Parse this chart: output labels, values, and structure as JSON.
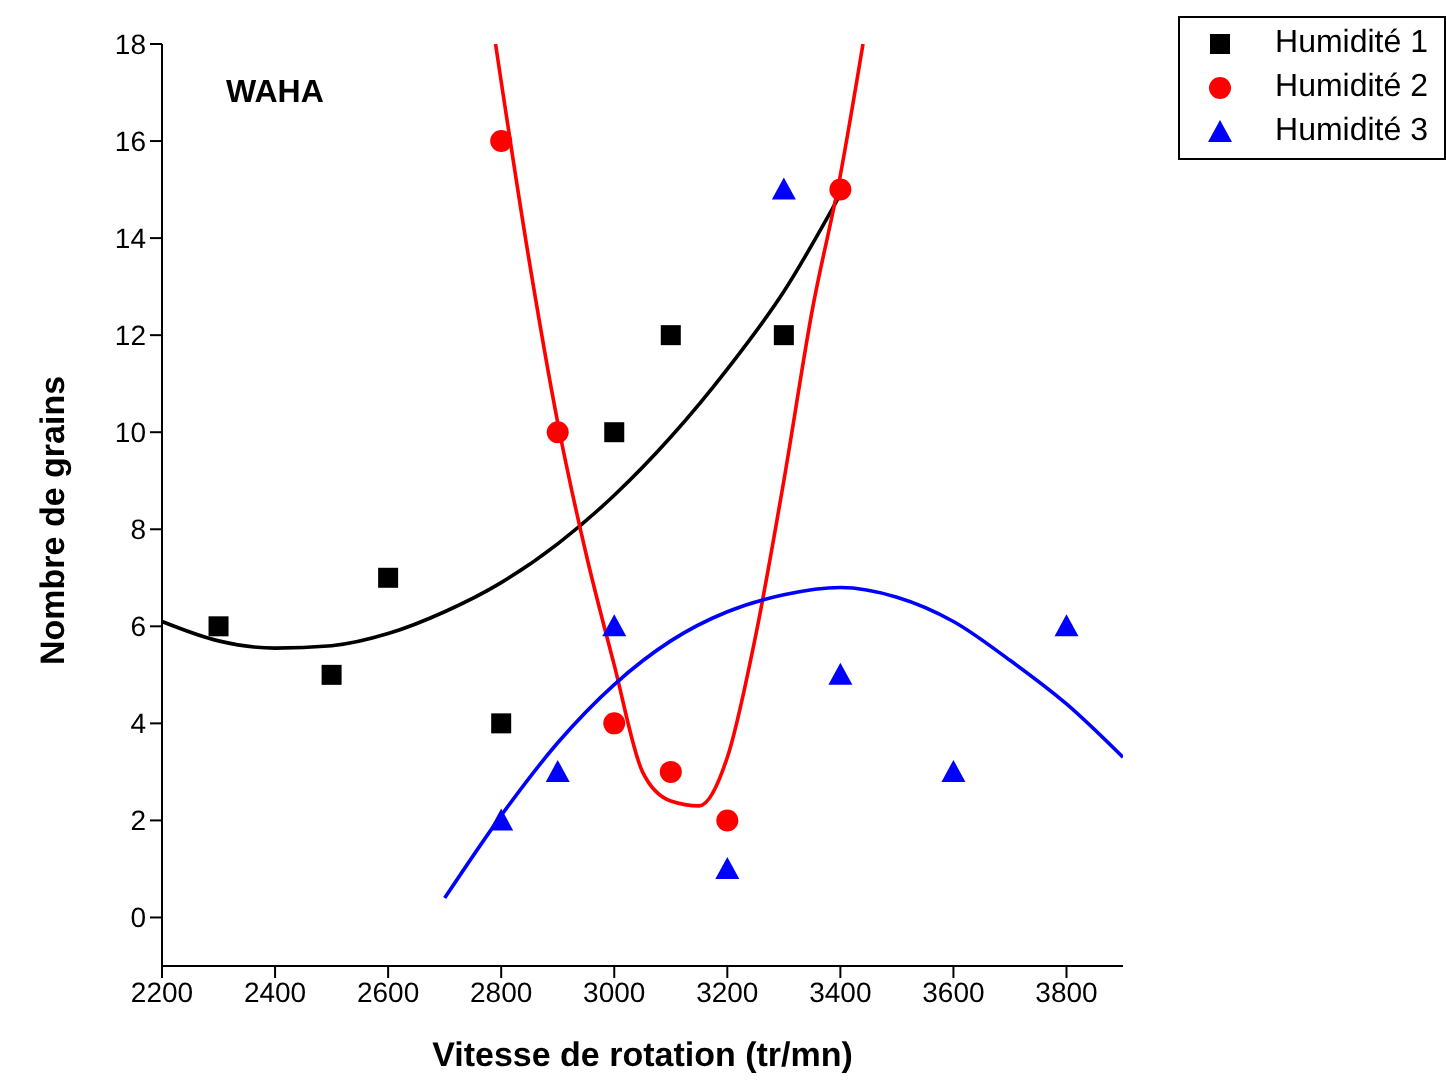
{
  "chart_data": {
    "type": "scatter",
    "xlabel": "Vitesse de rotation (tr/mn)",
    "ylabel": "Nombre de grains",
    "annotations": [
      "WAHA"
    ],
    "xlim": [
      2200,
      3900
    ],
    "xticks": [
      2200,
      2400,
      2600,
      2800,
      3000,
      3200,
      3400,
      3600,
      3800
    ],
    "ylim": [
      -1,
      18
    ],
    "yticks": [
      0,
      2,
      4,
      6,
      8,
      10,
      12,
      14,
      16,
      18
    ],
    "grid": false,
    "legend": "top right",
    "series": [
      {
        "name": "Humidité 1",
        "marker": "square",
        "color": "#000000",
        "x": [
          2300,
          2500,
          2600,
          2800,
          3000,
          3100,
          3300
        ],
        "values": [
          6,
          5,
          7,
          4,
          10,
          12,
          12
        ]
      },
      {
        "name": "Humidité 2",
        "marker": "circle",
        "color": "#ff0000",
        "x": [
          2800,
          2900,
          3000,
          3100,
          3200,
          3400
        ],
        "values": [
          16,
          10,
          4,
          3,
          2,
          15
        ]
      },
      {
        "name": "Humidité 3",
        "marker": "triangle",
        "color": "#0000ff",
        "x": [
          2800,
          2900,
          3000,
          3200,
          3300,
          3400,
          3600,
          3800
        ],
        "values": [
          2,
          3,
          6,
          1,
          15,
          5,
          3,
          6
        ]
      },
      {
        "type": "line",
        "marker": "none",
        "color": "#000000",
        "x": [
          2200,
          2300,
          2400,
          2500,
          2600,
          2700,
          2800,
          2900,
          3000,
          3100,
          3200,
          3300,
          3400
        ],
        "values": [
          6.1,
          5.7,
          5.55,
          5.6,
          5.85,
          6.3,
          6.9,
          7.7,
          8.7,
          9.9,
          11.3,
          12.9,
          14.9
        ]
      },
      {
        "type": "line",
        "marker": "none",
        "color": "#ff0000",
        "x": [
          2790,
          2850,
          2900,
          2950,
          3000,
          3050,
          3100,
          3150,
          3200,
          3250,
          3300,
          3350,
          3400,
          3440
        ],
        "values": [
          18,
          13.5,
          10.2,
          7.5,
          5.2,
          3.0,
          2.4,
          2.3,
          3.3,
          5.8,
          9.0,
          12.5,
          15.3,
          18
        ]
      },
      {
        "type": "line",
        "marker": "none",
        "color": "#0000ff",
        "x": [
          2700,
          2800,
          2900,
          3000,
          3100,
          3200,
          3300,
          3400,
          3500,
          3600,
          3700,
          3800,
          3900
        ],
        "values": [
          0.4,
          2.1,
          3.6,
          4.8,
          5.7,
          6.3,
          6.65,
          6.8,
          6.6,
          6.1,
          5.3,
          4.4,
          3.3
        ]
      }
    ]
  }
}
